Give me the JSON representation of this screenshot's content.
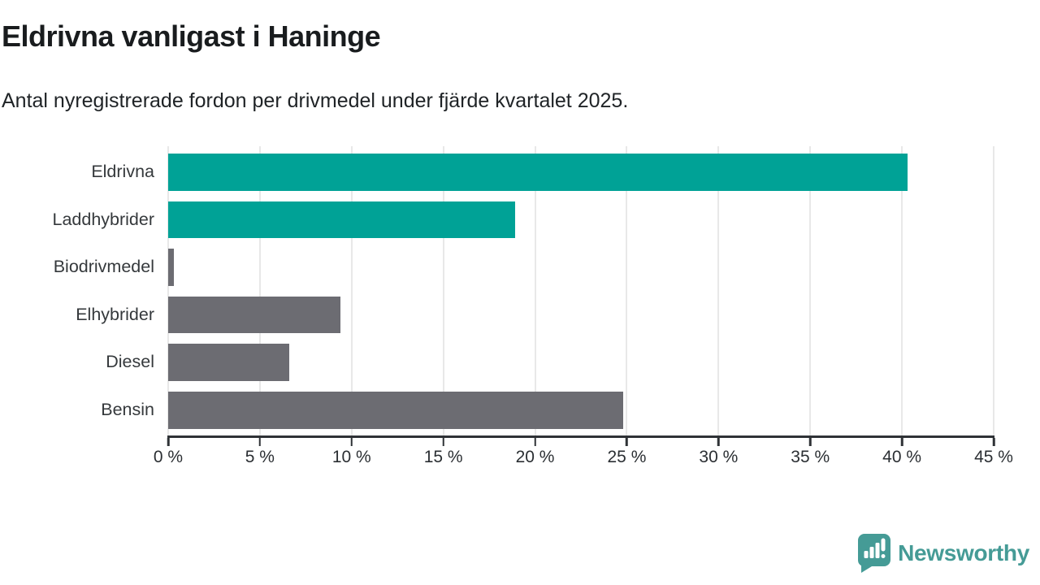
{
  "chart_data": {
    "type": "bar",
    "orientation": "horizontal",
    "title": "Eldrivna vanligast i Haninge",
    "subtitle": "Antal nyregistrerade fordon per drivmedel under fjärde kvartalet 2025.",
    "categories": [
      "Eldrivna",
      "Laddhybrider",
      "Biodrivmedel",
      "Elhybrider",
      "Diesel",
      "Bensin"
    ],
    "values": [
      40.3,
      18.9,
      0.3,
      9.4,
      6.6,
      24.8
    ],
    "value_unit": "%",
    "bar_colors": [
      "#00a296",
      "#00a296",
      "#6c6c72",
      "#6c6c72",
      "#6c6c72",
      "#6c6c72"
    ],
    "highlight_color": "#00a296",
    "default_bar_color": "#6c6c72",
    "xlim": [
      0,
      45
    ],
    "x_ticks": [
      0,
      5,
      10,
      15,
      20,
      25,
      30,
      35,
      40,
      45
    ],
    "x_tick_labels": [
      "0 %",
      "5 %",
      "10 %",
      "15 %",
      "20 %",
      "25 %",
      "30 %",
      "35 %",
      "40 %",
      "45 %"
    ],
    "grid": true,
    "grid_color": "#e8e8e8",
    "axis_color": "#2f3236",
    "legend": false,
    "ylabel": "",
    "xlabel": ""
  },
  "branding": {
    "name": "Newsworthy",
    "color": "#459b96",
    "icon": "newsworthy-speech-bubble-chart-icon"
  }
}
